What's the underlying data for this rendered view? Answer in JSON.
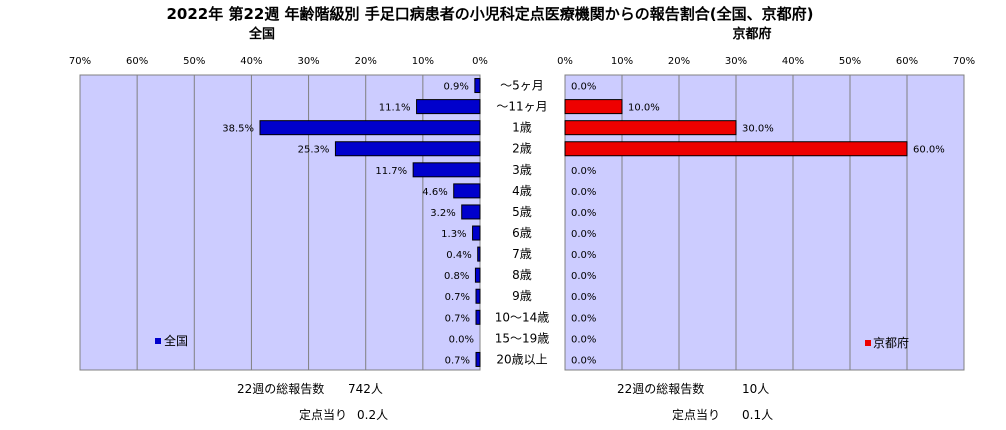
{
  "title": "2022年 第22週  年齢階級別 手足口病患者の小児科定点医療機関からの報告割合(全国、京都府)",
  "colors": {
    "plot_bg": "#ccccff",
    "national_bar": "#0000cc",
    "kyoto_bar": "#ee0000",
    "border": "#808080"
  },
  "chart_data": [
    {
      "type": "bar",
      "orientation": "horizontal",
      "direction": "right-to-left",
      "subtitle": "全国",
      "categories": [
        "〜5ヶ月",
        "〜11ヶ月",
        "1歳",
        "2歳",
        "3歳",
        "4歳",
        "5歳",
        "6歳",
        "7歳",
        "8歳",
        "9歳",
        "10〜14歳",
        "15〜19歳",
        "20歳以上"
      ],
      "series": [
        {
          "name": "全国",
          "values": [
            0.9,
            11.1,
            38.5,
            25.3,
            11.7,
            4.6,
            3.2,
            1.3,
            0.4,
            0.8,
            0.7,
            0.7,
            0.0,
            0.7
          ],
          "labels": [
            "0.9%",
            "11.1%",
            "38.5%",
            "25.3%",
            "11.7%",
            "4.6%",
            "3.2%",
            "1.3%",
            "0.4%",
            "0.8%",
            "0.7%",
            "0.7%",
            "0.0%",
            "0.7%"
          ]
        }
      ],
      "xlim": [
        0,
        70
      ],
      "ticks": [
        "70%",
        "60%",
        "50%",
        "40%",
        "30%",
        "20%",
        "10%",
        "0%"
      ],
      "grid": true,
      "legend": "bottom-left",
      "footer": {
        "total_label": "22週の総報告数",
        "total_value": "742人",
        "per_label": "定点当り",
        "per_value": "0.2人"
      }
    },
    {
      "type": "bar",
      "orientation": "horizontal",
      "direction": "left-to-right",
      "subtitle": "京都府",
      "categories": [
        "〜5ヶ月",
        "〜11ヶ月",
        "1歳",
        "2歳",
        "3歳",
        "4歳",
        "5歳",
        "6歳",
        "7歳",
        "8歳",
        "9歳",
        "10〜14歳",
        "15〜19歳",
        "20歳以上"
      ],
      "series": [
        {
          "name": "京都府",
          "values": [
            0.0,
            10.0,
            30.0,
            60.0,
            0.0,
            0.0,
            0.0,
            0.0,
            0.0,
            0.0,
            0.0,
            0.0,
            0.0,
            0.0
          ],
          "labels": [
            "0.0%",
            "10.0%",
            "30.0%",
            "60.0%",
            "0.0%",
            "0.0%",
            "0.0%",
            "0.0%",
            "0.0%",
            "0.0%",
            "0.0%",
            "0.0%",
            "0.0%",
            "0.0%"
          ]
        }
      ],
      "xlim": [
        0,
        70
      ],
      "ticks": [
        "0%",
        "10%",
        "20%",
        "30%",
        "40%",
        "50%",
        "60%",
        "70%"
      ],
      "grid": true,
      "legend": "bottom-right",
      "footer": {
        "total_label": "22週の総報告数",
        "total_value": "10人",
        "per_label": "定点当り",
        "per_value": "0.1人"
      }
    }
  ]
}
